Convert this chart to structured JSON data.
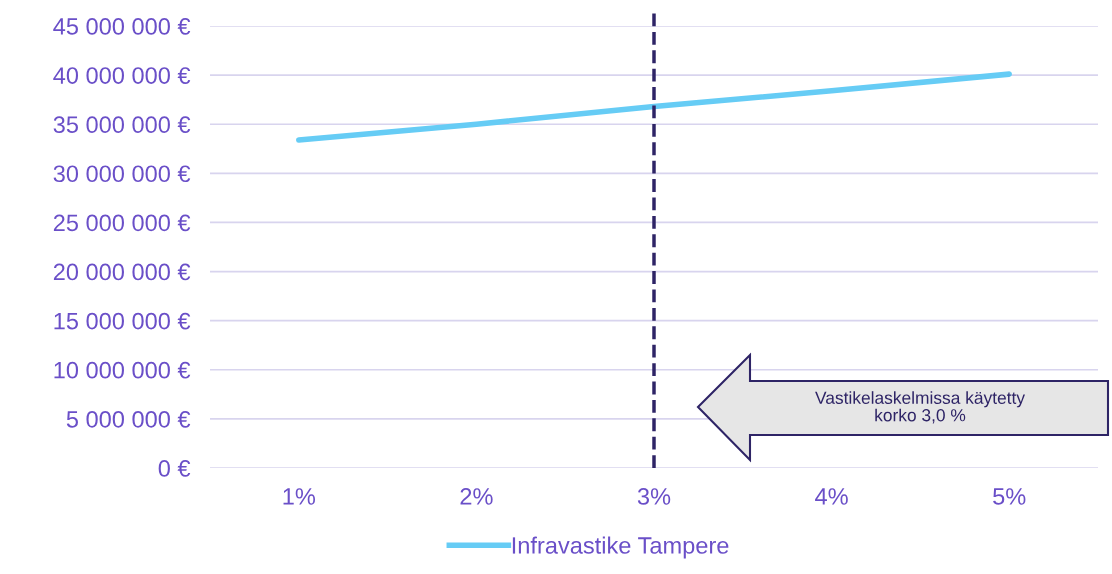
{
  "chart_data": {
    "type": "line",
    "categories": [
      "1%",
      "2%",
      "3%",
      "4%",
      "5%"
    ],
    "series": [
      {
        "name": "Infravastike Tampere",
        "color": "#66ccf5",
        "values": [
          33400000,
          35000000,
          36800000,
          38400000,
          40100000
        ]
      }
    ],
    "ylim": [
      0,
      45000000
    ],
    "yticks": [
      {
        "value": 0,
        "label": "0 €"
      },
      {
        "value": 5000000,
        "label": "5 000 000 €"
      },
      {
        "value": 10000000,
        "label": "10 000 000 €"
      },
      {
        "value": 15000000,
        "label": "15 000 000 €"
      },
      {
        "value": 20000000,
        "label": "20 000 000 €"
      },
      {
        "value": 25000000,
        "label": "25 000 000 €"
      },
      {
        "value": 30000000,
        "label": "30 000 000 €"
      },
      {
        "value": 35000000,
        "label": "35 000 000 €"
      },
      {
        "value": 40000000,
        "label": "40 000 000 €"
      },
      {
        "value": 45000000,
        "label": "45 000 000 €"
      }
    ],
    "ref_lines": [
      {
        "axis": "x",
        "value": "3%",
        "color": "#2e2466",
        "line_style": "dashed"
      }
    ],
    "annotations": [
      "Vastikelaskelmissa käytetty\nkorko 3,0 %"
    ],
    "grid": "y",
    "legend": "bottom",
    "marker": "none",
    "line_style": "solid"
  }
}
